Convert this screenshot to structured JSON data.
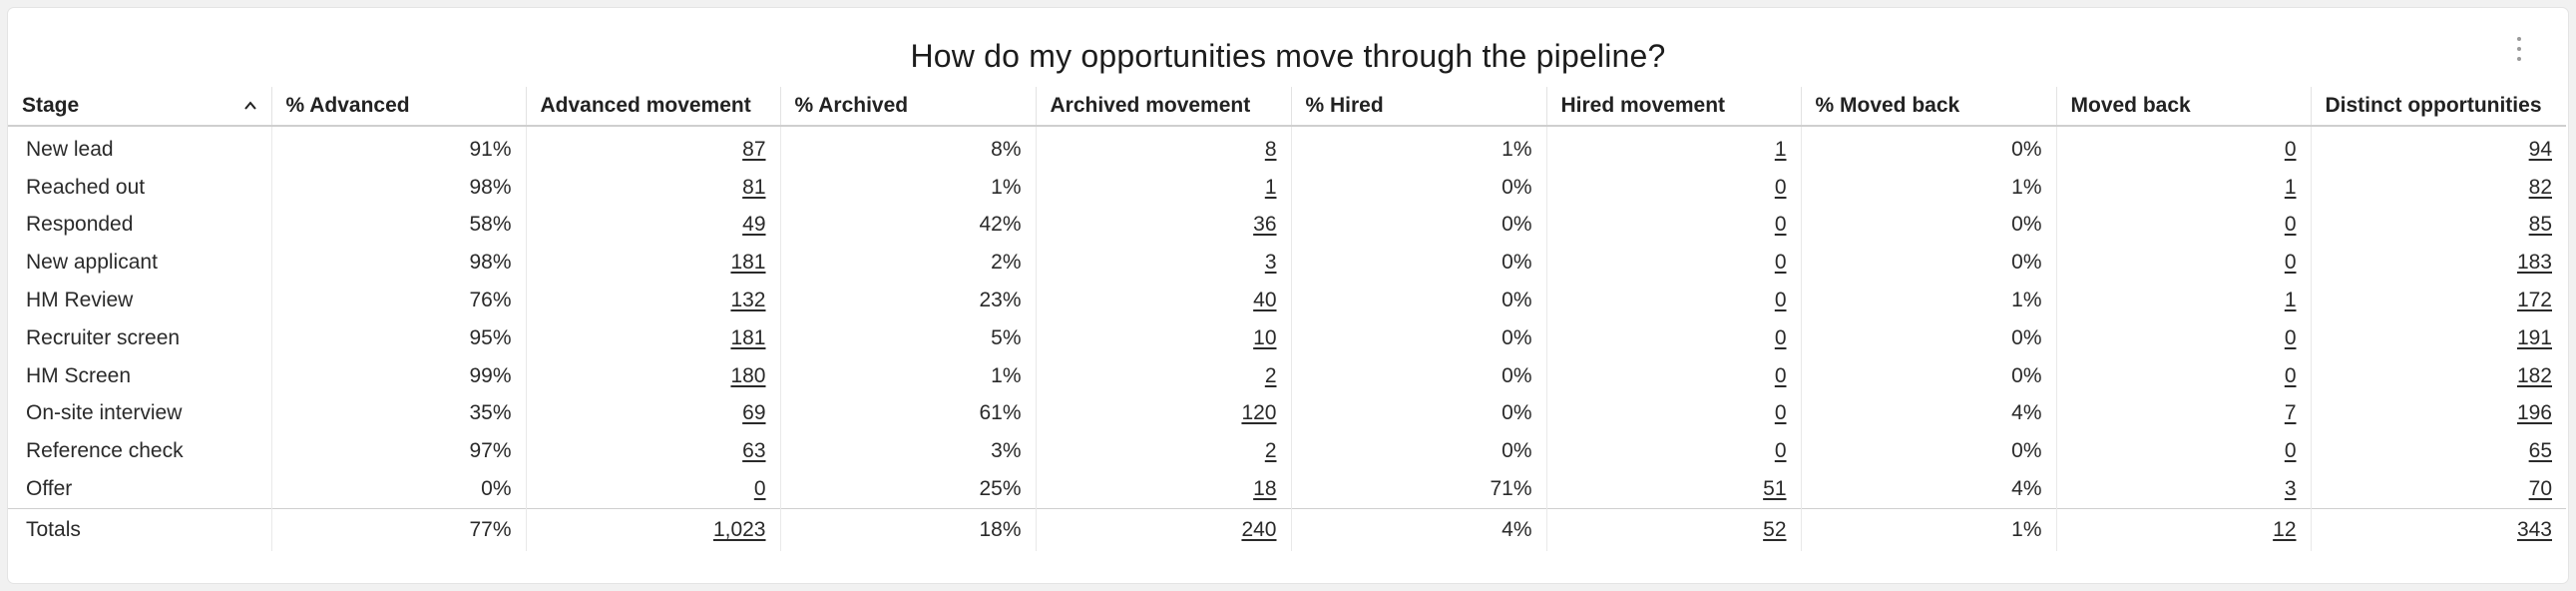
{
  "title": "How do my opportunities move through the pipeline?",
  "menu_icon": "more-vertical-icon",
  "sort_icon": "chevron-up-icon",
  "columns": [
    "Stage",
    "% Advanced",
    "Advanced movement",
    "% Archived",
    "Archived movement",
    "% Hired",
    "Hired movement",
    "% Moved back",
    "Moved back",
    "Distinct opportunities"
  ],
  "rows": [
    [
      "New lead",
      "91%",
      "87",
      "8%",
      "8",
      "1%",
      "1",
      "0%",
      "0",
      "94"
    ],
    [
      "Reached out",
      "98%",
      "81",
      "1%",
      "1",
      "0%",
      "0",
      "1%",
      "1",
      "82"
    ],
    [
      "Responded",
      "58%",
      "49",
      "42%",
      "36",
      "0%",
      "0",
      "0%",
      "0",
      "85"
    ],
    [
      "New applicant",
      "98%",
      "181",
      "2%",
      "3",
      "0%",
      "0",
      "0%",
      "0",
      "183"
    ],
    [
      "HM Review",
      "76%",
      "132",
      "23%",
      "40",
      "0%",
      "0",
      "1%",
      "1",
      "172"
    ],
    [
      "Recruiter screen",
      "95%",
      "181",
      "5%",
      "10",
      "0%",
      "0",
      "0%",
      "0",
      "191"
    ],
    [
      "HM Screen",
      "99%",
      "180",
      "1%",
      "2",
      "0%",
      "0",
      "0%",
      "0",
      "182"
    ],
    [
      "On-site interview",
      "35%",
      "69",
      "61%",
      "120",
      "0%",
      "0",
      "4%",
      "7",
      "196"
    ],
    [
      "Reference check",
      "97%",
      "63",
      "3%",
      "2",
      "0%",
      "0",
      "0%",
      "0",
      "65"
    ],
    [
      "Offer",
      "0%",
      "0",
      "25%",
      "18",
      "71%",
      "51",
      "4%",
      "3",
      "70"
    ]
  ],
  "totals": [
    "Totals",
    "77%",
    "1,023",
    "18%",
    "240",
    "4%",
    "52",
    "1%",
    "12",
    "343"
  ]
}
